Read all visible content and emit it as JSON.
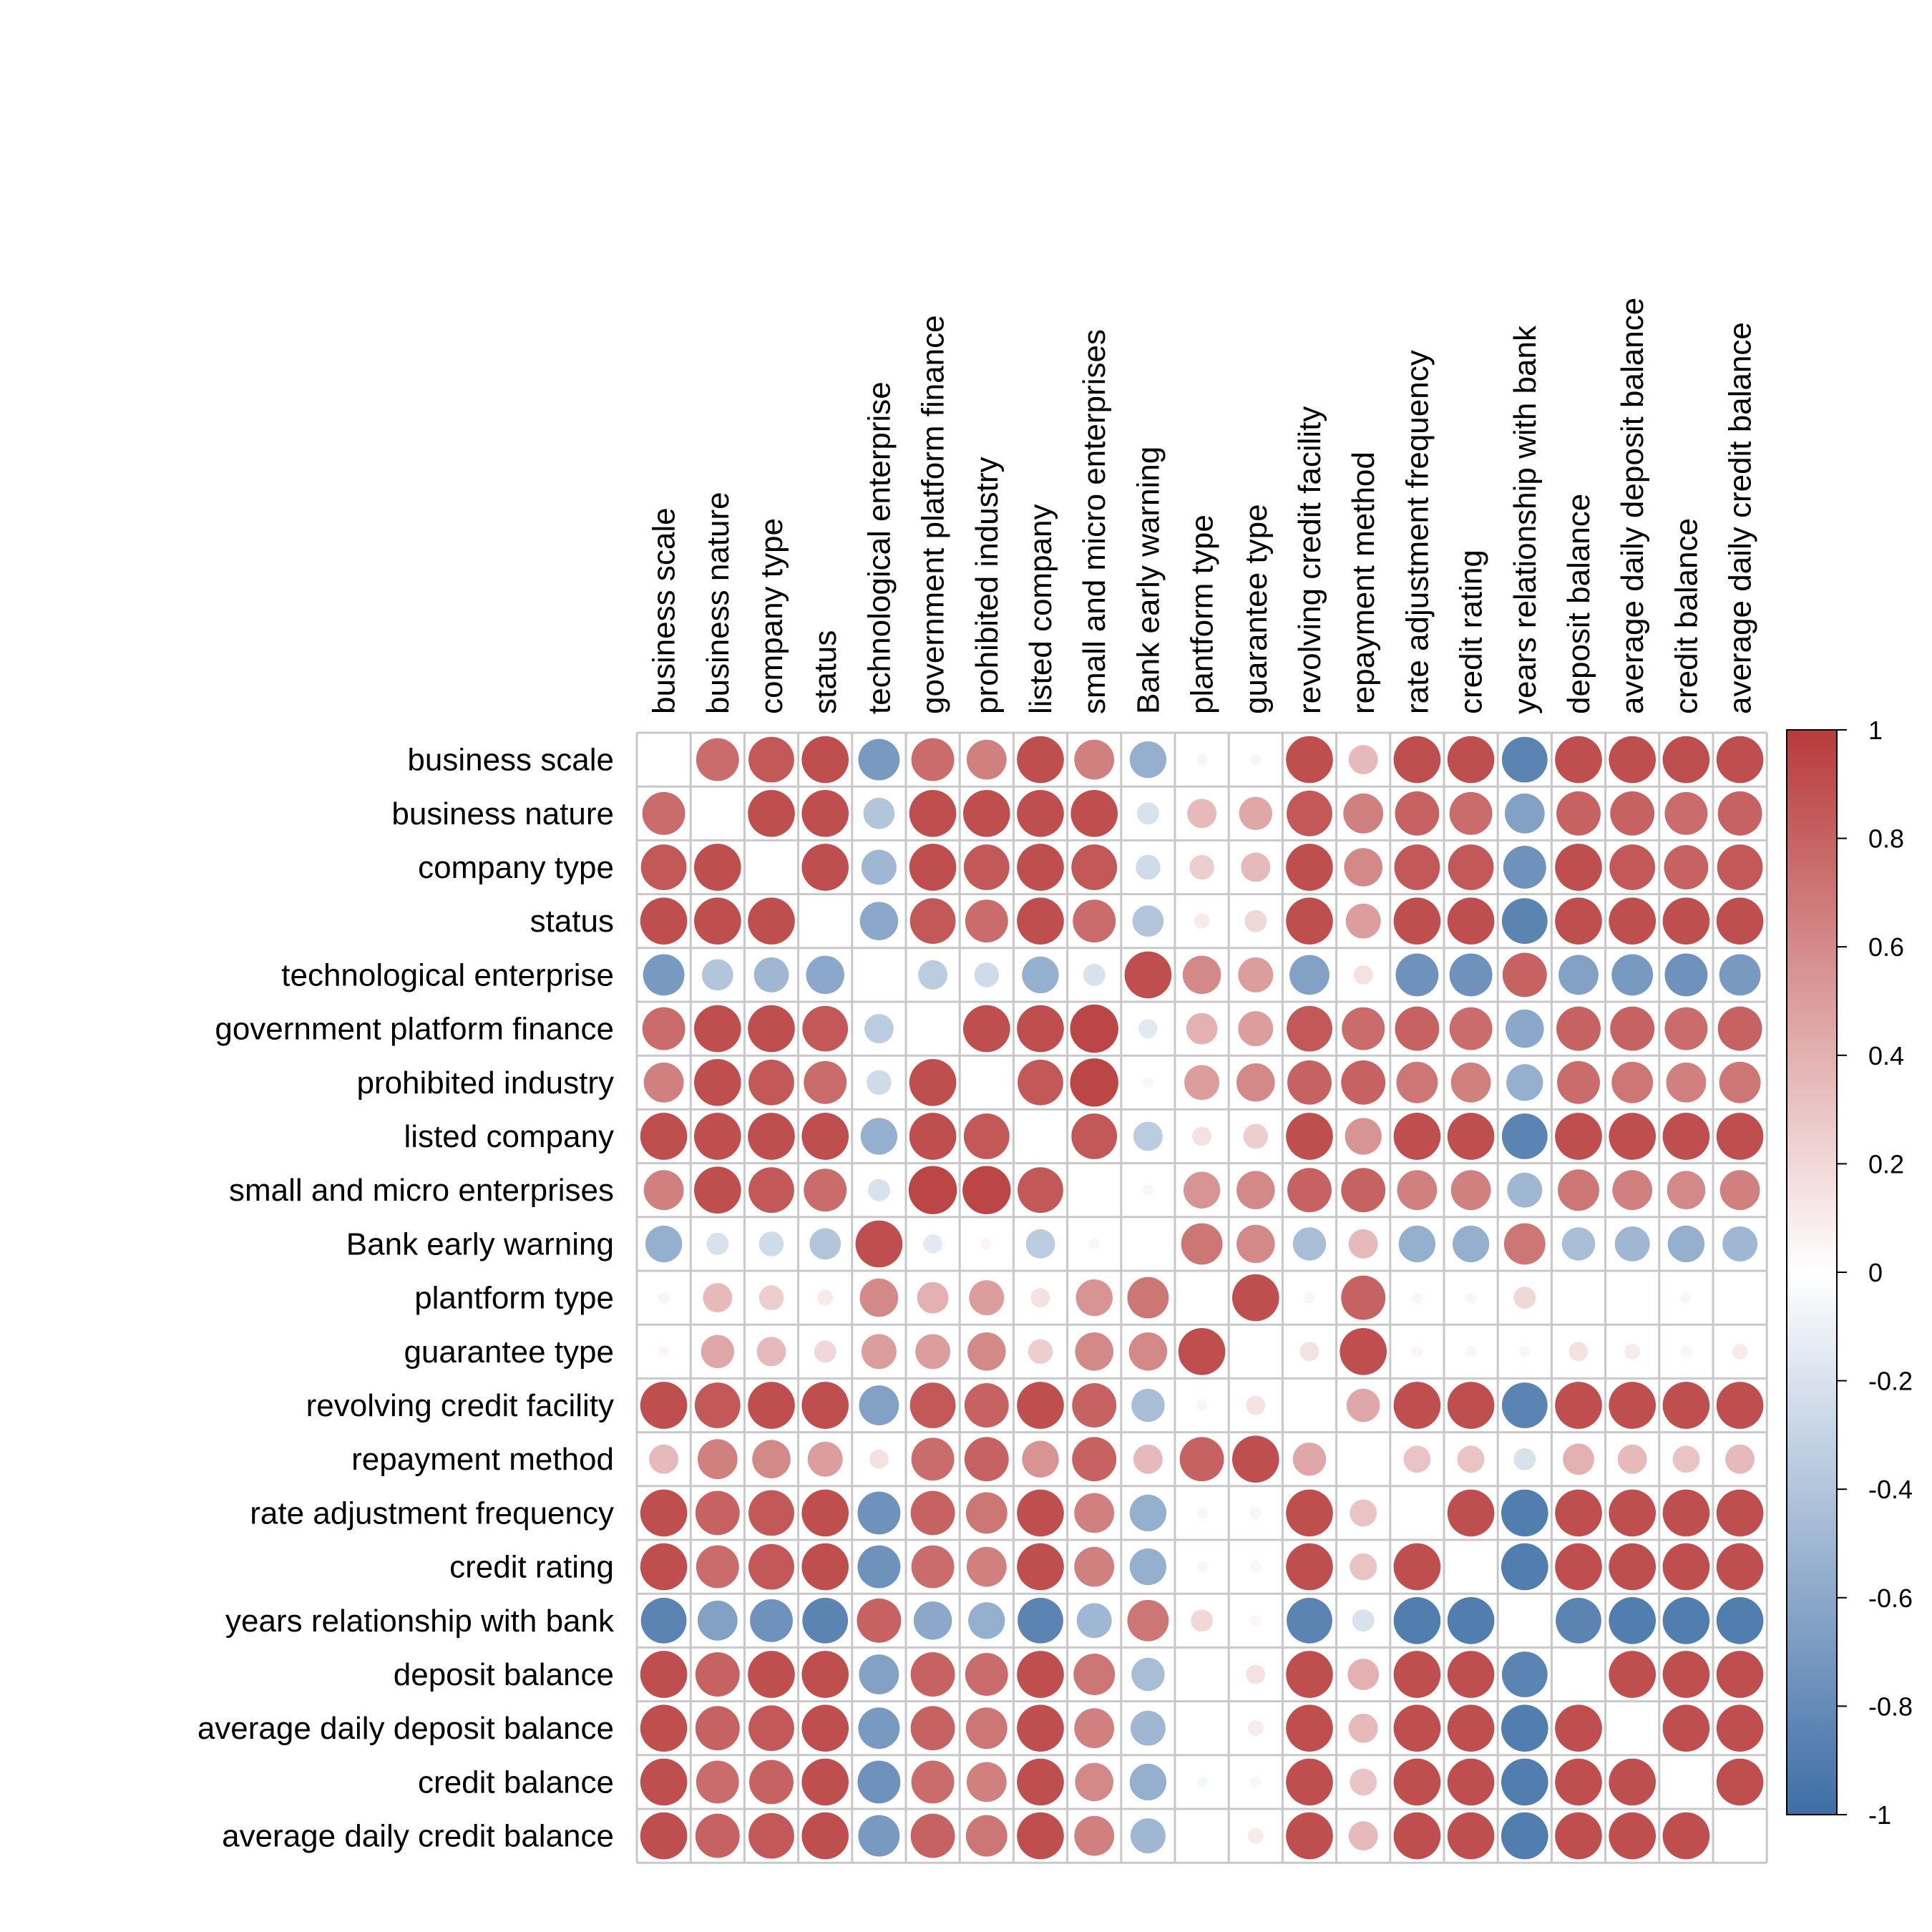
{
  "chart_data": {
    "type": "heatmap",
    "subtype": "correlation-matrix-circles",
    "title": "",
    "variables": [
      "business scale",
      "business nature",
      "company type",
      "status",
      "technological enterprise",
      "government platform finance",
      "prohibited industry",
      "listed company",
      "small and micro enterprises",
      "Bank early warning",
      "plantform type",
      "guarantee type",
      "revolving credit facility",
      "repayment method",
      "rate adjustment frequency",
      "credit rating",
      "years relationship with bank",
      "deposit balance",
      "average daily deposit balance",
      "credit balance",
      "average daily credit balance"
    ],
    "matrix": [
      [
        null,
        0.75,
        0.85,
        0.9,
        -0.7,
        0.75,
        0.65,
        0.9,
        0.65,
        -0.55,
        0.05,
        0.05,
        0.9,
        0.35,
        0.9,
        0.9,
        -0.85,
        0.9,
        0.9,
        0.9,
        0.9
      ],
      [
        0.75,
        null,
        0.9,
        0.9,
        -0.4,
        0.9,
        0.9,
        0.9,
        0.9,
        -0.2,
        0.35,
        0.45,
        0.85,
        0.65,
        0.8,
        0.75,
        -0.65,
        0.8,
        0.8,
        0.75,
        0.8
      ],
      [
        0.85,
        0.9,
        null,
        0.9,
        -0.5,
        0.9,
        0.85,
        0.9,
        0.85,
        -0.25,
        0.25,
        0.35,
        0.9,
        0.6,
        0.85,
        0.85,
        -0.75,
        0.9,
        0.85,
        0.8,
        0.85
      ],
      [
        0.9,
        0.9,
        0.9,
        null,
        -0.6,
        0.85,
        0.75,
        0.9,
        0.75,
        -0.4,
        0.1,
        0.2,
        0.9,
        0.5,
        0.9,
        0.9,
        -0.85,
        0.9,
        0.9,
        0.9,
        0.9
      ],
      [
        -0.7,
        -0.4,
        -0.5,
        -0.6,
        null,
        -0.35,
        -0.25,
        -0.55,
        -0.2,
        0.9,
        0.6,
        0.5,
        -0.65,
        0.15,
        -0.75,
        -0.75,
        0.8,
        -0.65,
        -0.7,
        -0.75,
        -0.7
      ],
      [
        0.75,
        0.9,
        0.9,
        0.85,
        -0.35,
        null,
        0.9,
        0.9,
        0.95,
        -0.15,
        0.4,
        0.5,
        0.85,
        0.75,
        0.8,
        0.75,
        -0.6,
        0.8,
        0.8,
        0.75,
        0.8
      ],
      [
        0.65,
        0.9,
        0.85,
        0.75,
        -0.25,
        0.9,
        null,
        0.85,
        0.95,
        0.05,
        0.5,
        0.6,
        0.8,
        0.8,
        0.7,
        0.65,
        -0.55,
        0.75,
        0.7,
        0.65,
        0.7
      ],
      [
        0.9,
        0.9,
        0.9,
        0.9,
        -0.55,
        0.9,
        0.85,
        null,
        0.85,
        -0.35,
        0.15,
        0.25,
        0.9,
        0.55,
        0.9,
        0.9,
        -0.85,
        0.9,
        0.9,
        0.9,
        0.9
      ],
      [
        0.65,
        0.9,
        0.85,
        0.75,
        -0.2,
        0.95,
        0.95,
        0.85,
        null,
        0.05,
        0.55,
        0.6,
        0.8,
        0.8,
        0.65,
        0.65,
        -0.5,
        0.7,
        0.65,
        0.6,
        0.65
      ],
      [
        -0.55,
        -0.2,
        -0.25,
        -0.4,
        0.9,
        -0.15,
        0.05,
        -0.35,
        0.05,
        null,
        0.7,
        0.6,
        -0.45,
        0.35,
        -0.55,
        -0.55,
        0.7,
        -0.45,
        -0.5,
        -0.55,
        -0.5
      ],
      [
        0.05,
        0.35,
        0.25,
        0.1,
        0.6,
        0.4,
        0.5,
        0.15,
        0.55,
        0.7,
        null,
        0.9,
        0.05,
        0.8,
        0.05,
        0.05,
        0.2,
        0.0,
        0.0,
        -0.05,
        0.0
      ],
      [
        0.05,
        0.45,
        0.35,
        0.2,
        0.5,
        0.5,
        0.6,
        0.25,
        0.6,
        0.6,
        0.9,
        null,
        0.15,
        0.9,
        0.05,
        0.05,
        0.05,
        0.15,
        0.1,
        0.05,
        0.1
      ],
      [
        0.9,
        0.85,
        0.9,
        0.9,
        -0.65,
        0.85,
        0.8,
        0.9,
        0.8,
        -0.45,
        0.05,
        0.15,
        null,
        0.45,
        0.9,
        0.9,
        -0.85,
        0.9,
        0.9,
        0.9,
        0.9
      ],
      [
        0.35,
        0.65,
        0.6,
        0.5,
        0.15,
        0.75,
        0.8,
        0.55,
        0.8,
        0.35,
        0.8,
        0.9,
        0.45,
        null,
        0.3,
        0.3,
        -0.2,
        0.4,
        0.35,
        0.3,
        0.35
      ],
      [
        0.9,
        0.8,
        0.85,
        0.9,
        -0.75,
        0.8,
        0.7,
        0.9,
        0.65,
        -0.55,
        -0.05,
        0.05,
        0.9,
        0.3,
        null,
        0.9,
        -0.9,
        0.9,
        0.9,
        0.9,
        0.9
      ],
      [
        0.9,
        0.75,
        0.85,
        0.9,
        -0.75,
        0.75,
        0.65,
        0.9,
        0.65,
        -0.55,
        0.05,
        0.05,
        0.9,
        0.3,
        0.9,
        null,
        -0.9,
        0.9,
        0.9,
        0.9,
        0.9
      ],
      [
        -0.85,
        -0.65,
        -0.75,
        -0.85,
        0.8,
        -0.6,
        -0.55,
        -0.85,
        -0.5,
        0.7,
        0.2,
        0.05,
        -0.85,
        -0.2,
        -0.9,
        -0.9,
        null,
        -0.85,
        -0.9,
        -0.9,
        -0.9
      ],
      [
        0.9,
        0.8,
        0.9,
        0.9,
        -0.65,
        0.8,
        0.75,
        0.9,
        0.7,
        -0.45,
        0.0,
        0.15,
        0.9,
        0.4,
        0.9,
        0.9,
        -0.85,
        null,
        0.9,
        0.9,
        0.9
      ],
      [
        0.9,
        0.8,
        0.85,
        0.9,
        -0.7,
        0.8,
        0.7,
        0.9,
        0.65,
        -0.5,
        0.0,
        0.1,
        0.9,
        0.35,
        0.9,
        0.9,
        -0.9,
        0.9,
        null,
        0.9,
        0.9
      ],
      [
        0.9,
        0.75,
        0.8,
        0.9,
        -0.75,
        0.75,
        0.65,
        0.9,
        0.6,
        -0.55,
        -0.05,
        0.05,
        0.9,
        0.3,
        0.9,
        0.9,
        -0.9,
        0.9,
        0.9,
        null,
        0.9
      ],
      [
        0.9,
        0.8,
        0.85,
        0.9,
        -0.7,
        0.8,
        0.7,
        0.9,
        0.65,
        -0.5,
        0.0,
        0.1,
        0.9,
        0.35,
        0.9,
        0.9,
        -0.9,
        0.9,
        0.9,
        0.9,
        null
      ]
    ],
    "colorbar": {
      "range": [
        -1,
        1
      ],
      "ticks": [
        "1",
        "0.8",
        "0.6",
        "0.4",
        "0.2",
        "0",
        "-0.2",
        "-0.4",
        "-0.6",
        "-0.8",
        "-1"
      ],
      "low_color": "#3E6EA6",
      "mid_color": "#FFFFFF",
      "high_color": "#B83B3B"
    },
    "grid": true,
    "legend_position": "right"
  }
}
